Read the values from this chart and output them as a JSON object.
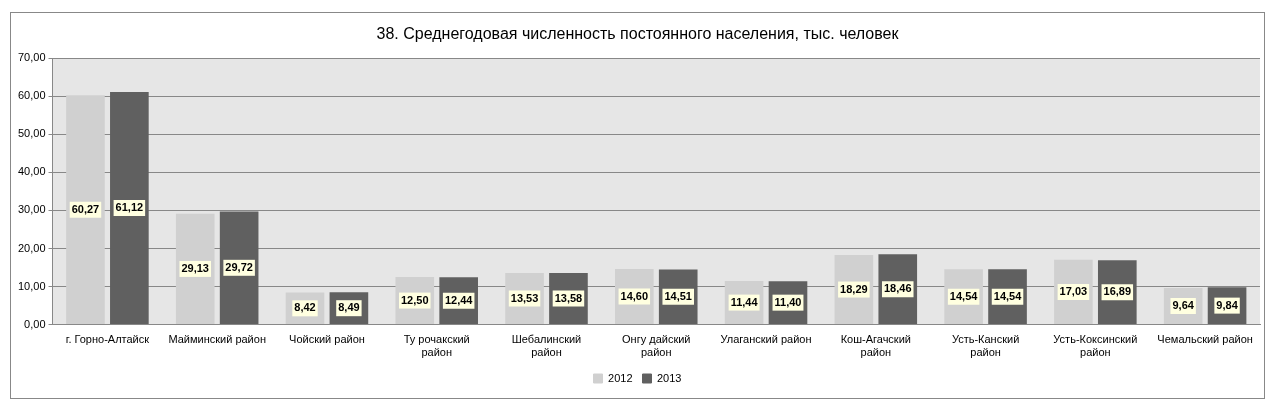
{
  "chart_data": {
    "type": "bar",
    "title": "38. Среднегодовая численность постоянного населения, тыс. человек",
    "categories": [
      "г. Горно-Алтайск",
      "Майминский район",
      "Чойский район",
      "Ту рочакский район",
      "Шебалинский район",
      "Онгу дайский район",
      "Улаганский район",
      "Кош-Агачский район",
      "Усть-Канский район",
      "Усть-Коксинский район",
      "Чемальский район"
    ],
    "series": [
      {
        "name": "2012",
        "color": "#d0d0d0",
        "values": [
          60.27,
          29.13,
          8.42,
          12.5,
          13.53,
          14.6,
          11.44,
          18.29,
          14.54,
          17.03,
          9.64
        ],
        "value_labels": [
          "60,27",
          "29,13",
          "8,42",
          "12,50",
          "13,53",
          "14,60",
          "11,44",
          "18,29",
          "14,54",
          "17,03",
          "9,64"
        ]
      },
      {
        "name": "2013",
        "color": "#606060",
        "values": [
          61.12,
          29.72,
          8.49,
          12.44,
          13.58,
          14.51,
          11.4,
          18.46,
          14.54,
          16.89,
          9.84
        ],
        "value_labels": [
          "61,12",
          "29,72",
          "8,49",
          "12,44",
          "13,58",
          "14,51",
          "11,40",
          "18,46",
          "14,54",
          "16,89",
          "9,84"
        ]
      }
    ],
    "ylim": [
      0,
      70
    ],
    "yticks": [
      {
        "value": 0,
        "label": "0,00"
      },
      {
        "value": 10,
        "label": "10,00"
      },
      {
        "value": 20,
        "label": "20,00"
      },
      {
        "value": 30,
        "label": "30,00"
      },
      {
        "value": 40,
        "label": "40,00"
      },
      {
        "value": 50,
        "label": "50,00"
      },
      {
        "value": 60,
        "label": "60,00"
      },
      {
        "value": 70,
        "label": "70,00"
      }
    ],
    "grid": "y",
    "legend": "bottom"
  }
}
